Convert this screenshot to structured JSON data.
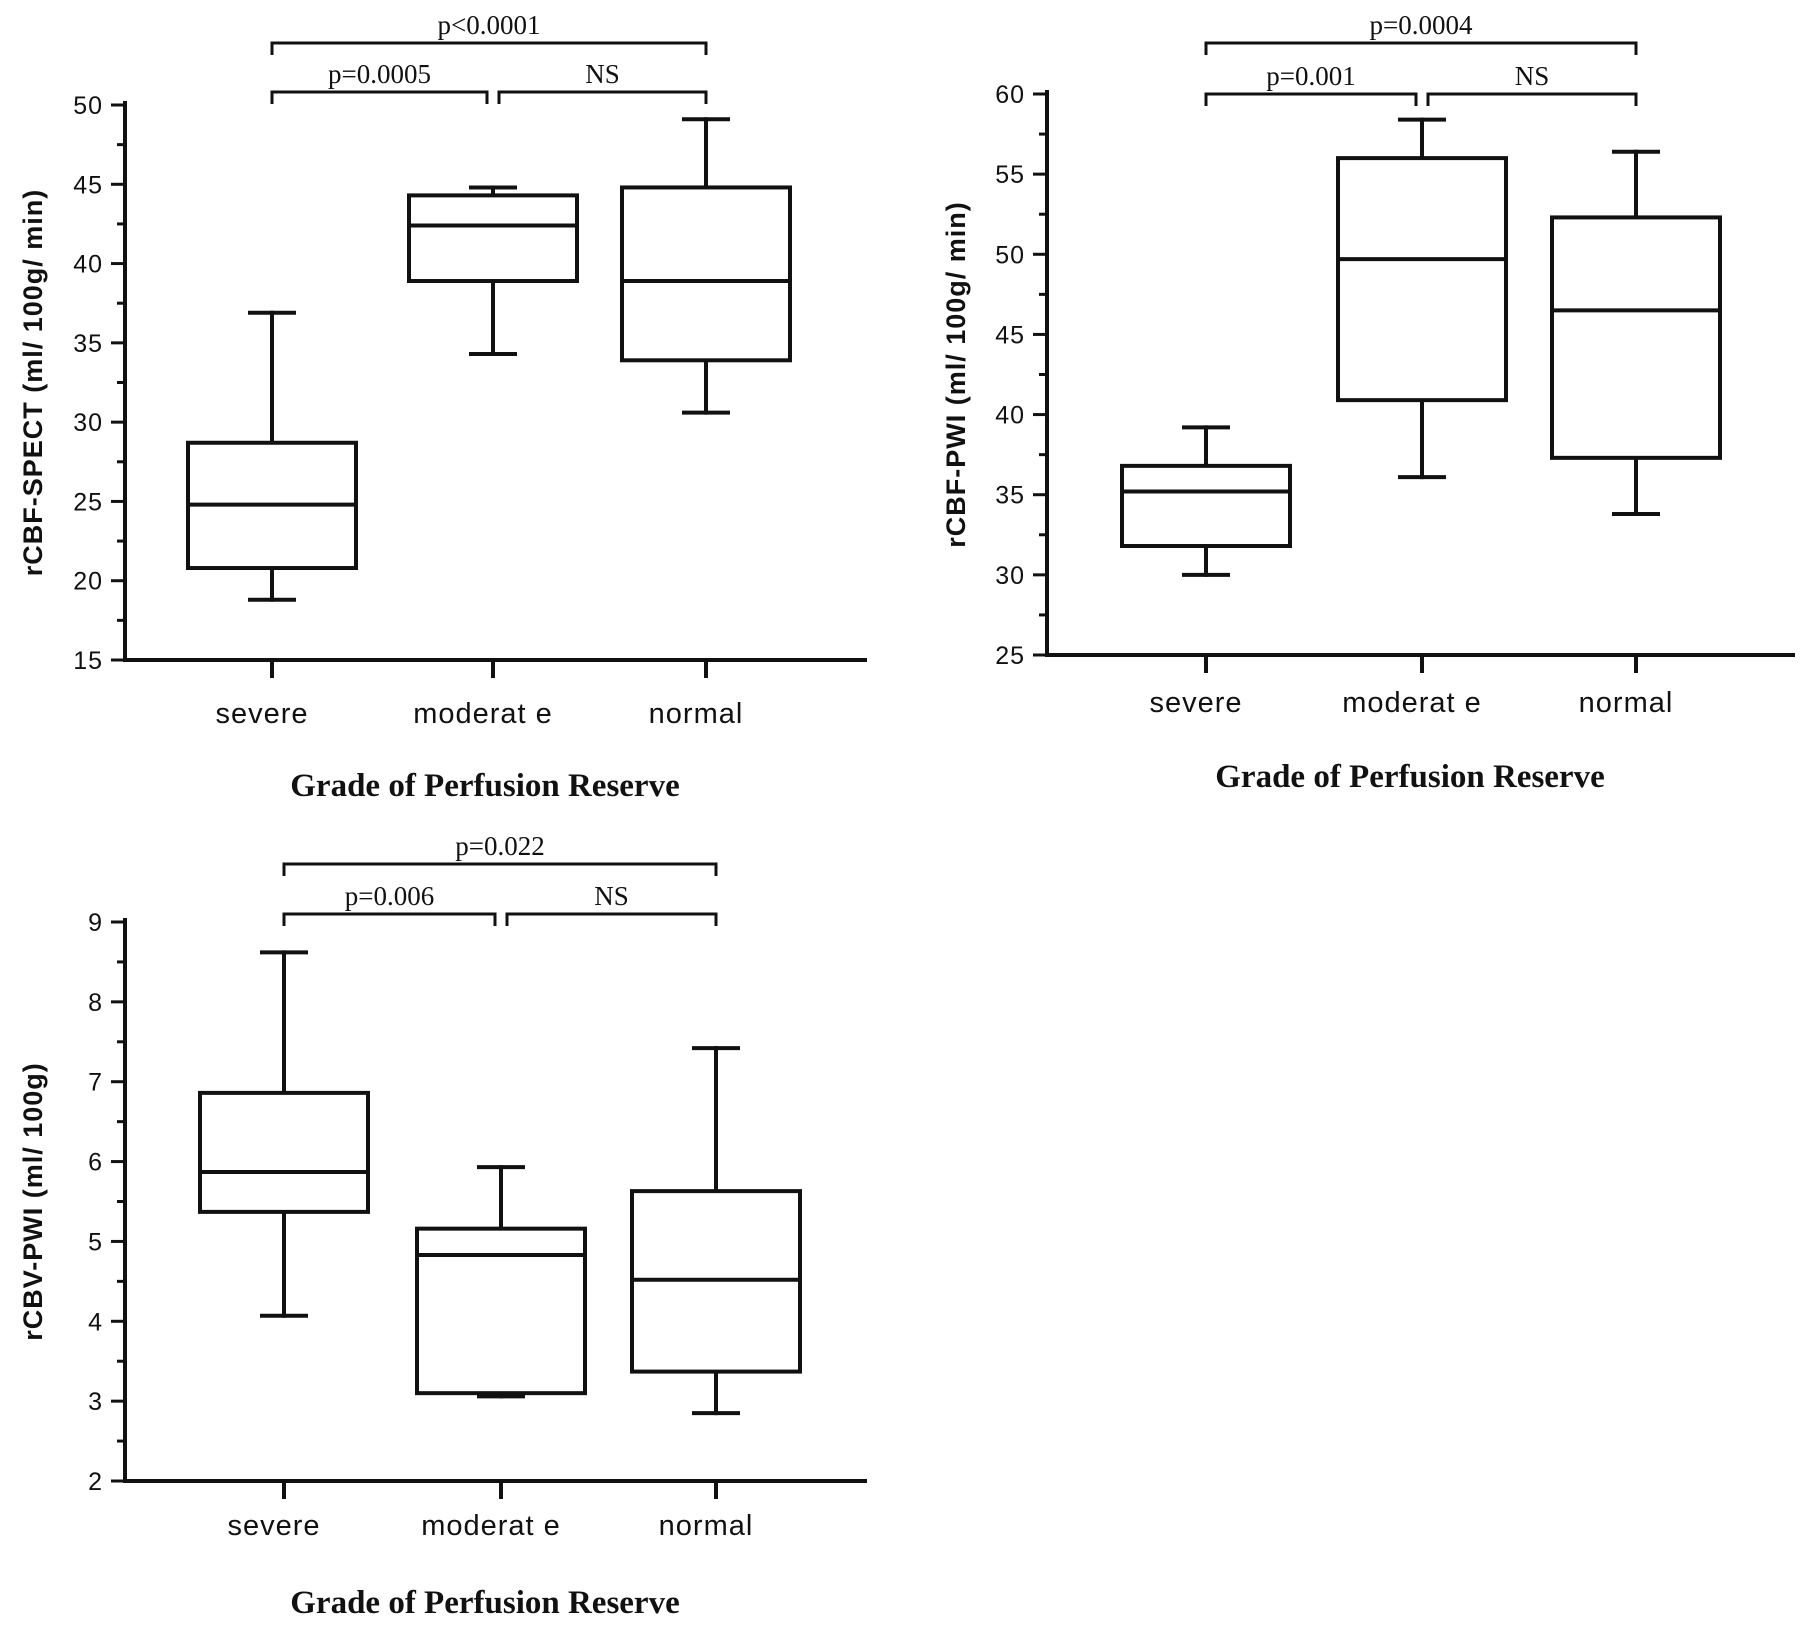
{
  "chart_data": [
    {
      "type": "box",
      "xlabel": "Grade of Perfusion Reserve",
      "ylabel": "rCBF-SPECT (ml/ 100g/ min)",
      "categories": [
        "severe",
        "moderat e",
        "normal"
      ],
      "ylim": [
        15,
        50
      ],
      "yticks": [
        15,
        20,
        25,
        30,
        35,
        40,
        45,
        50
      ],
      "boxes": [
        {
          "category": "severe",
          "whisker_low": 18.8,
          "q1": 20.8,
          "median": 24.8,
          "q3": 28.7,
          "whisker_high": 36.9
        },
        {
          "category": "moderat e",
          "whisker_low": 34.3,
          "q1": 38.9,
          "median": 42.4,
          "q3": 44.3,
          "whisker_high": 44.8
        },
        {
          "category": "normal",
          "whisker_low": 30.6,
          "q1": 33.9,
          "median": 38.9,
          "q3": 44.8,
          "whisker_high": 49.1
        }
      ],
      "comparisons": [
        {
          "from": 0,
          "to": 1,
          "label": "p=0.0005",
          "level": 1
        },
        {
          "from": 1,
          "to": 2,
          "label": "NS",
          "level": 1
        },
        {
          "from": 0,
          "to": 2,
          "label": "p<0.0001",
          "level": 2
        }
      ]
    },
    {
      "type": "box",
      "xlabel": "Grade of Perfusion Reserve",
      "ylabel": "rCBF-PWI (ml/ 100g/ min)",
      "categories": [
        "severe",
        "moderat e",
        "normal"
      ],
      "ylim": [
        25,
        60
      ],
      "yticks": [
        25,
        30,
        35,
        40,
        45,
        50,
        55,
        60
      ],
      "boxes": [
        {
          "category": "severe",
          "whisker_low": 30.0,
          "q1": 31.8,
          "median": 35.2,
          "q3": 36.8,
          "whisker_high": 39.2
        },
        {
          "category": "moderat e",
          "whisker_low": 36.1,
          "q1": 40.9,
          "median": 49.7,
          "q3": 56.0,
          "whisker_high": 58.4
        },
        {
          "category": "normal",
          "whisker_low": 33.8,
          "q1": 37.3,
          "median": 46.5,
          "q3": 52.3,
          "whisker_high": 56.4
        }
      ],
      "comparisons": [
        {
          "from": 0,
          "to": 1,
          "label": "p=0.001",
          "level": 1
        },
        {
          "from": 1,
          "to": 2,
          "label": "NS",
          "level": 1
        },
        {
          "from": 0,
          "to": 2,
          "label": "p=0.0004",
          "level": 2
        }
      ]
    },
    {
      "type": "box",
      "xlabel": "Grade of Perfusion Reserve",
      "ylabel": "rCBV-PWI (ml/ 100g)",
      "categories": [
        "severe",
        "moderat e",
        "normal"
      ],
      "ylim": [
        2,
        9
      ],
      "yticks": [
        2,
        3,
        4,
        5,
        6,
        7,
        8,
        9
      ],
      "boxes": [
        {
          "category": "severe",
          "whisker_low": 4.07,
          "q1": 5.37,
          "median": 5.87,
          "q3": 6.86,
          "whisker_high": 8.62
        },
        {
          "category": "moderat e",
          "whisker_low": 3.06,
          "q1": 3.1,
          "median": 4.83,
          "q3": 5.16,
          "whisker_high": 5.93
        },
        {
          "category": "normal",
          "whisker_low": 2.85,
          "q1": 3.37,
          "median": 4.52,
          "q3": 5.63,
          "whisker_high": 7.42
        }
      ],
      "comparisons": [
        {
          "from": 0,
          "to": 1,
          "label": "p=0.006",
          "level": 1
        },
        {
          "from": 1,
          "to": 2,
          "label": "NS",
          "level": 1
        },
        {
          "from": 0,
          "to": 2,
          "label": "p=0.022",
          "level": 2
        }
      ]
    }
  ]
}
